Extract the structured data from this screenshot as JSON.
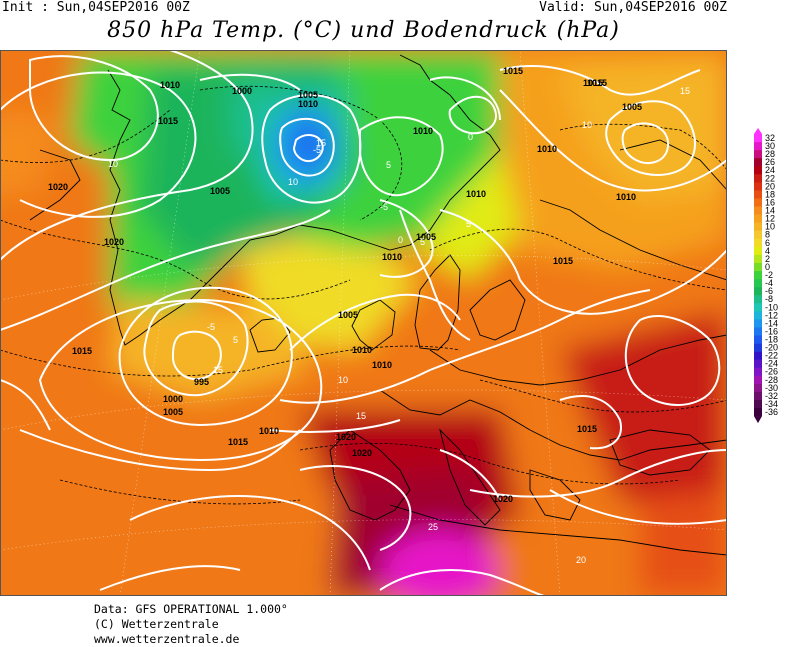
{
  "header": {
    "init": "Init : Sun,04SEP2016 00Z",
    "valid": "Valid: Sun,04SEP2016 00Z",
    "title": "850 hPa Temp. (°C) und Bodendruck (hPa)"
  },
  "footer": {
    "data_line": "Data: GFS OPERATIONAL 1.000°",
    "copyright": "(C) Wetterzentrale",
    "url": "www.wetterzentrale.de"
  },
  "colorbar": {
    "labels": [
      "32",
      "30",
      "28",
      "26",
      "24",
      "22",
      "20",
      "18",
      "16",
      "14",
      "12",
      "10",
      "8",
      "6",
      "4",
      "2",
      "0",
      "-2",
      "-4",
      "-6",
      "-8",
      "-10",
      "-12",
      "-14",
      "-16",
      "-18",
      "-20",
      "-22",
      "-24",
      "-26",
      "-28",
      "-30",
      "-32",
      "-34",
      "-36"
    ],
    "colors": [
      "#ff33ff",
      "#e619c8",
      "#c80f7d",
      "#a0002d",
      "#b40014",
      "#c81e14",
      "#dc3214",
      "#e65014",
      "#f06e14",
      "#f58c1e",
      "#f5a01e",
      "#f5b428",
      "#f5c832",
      "#f0dc28",
      "#e1eb14",
      "#b4e61e",
      "#78dc28",
      "#3cd23c",
      "#28c850",
      "#1eb45a",
      "#1ebe8c",
      "#1ec8b4",
      "#1eb4dc",
      "#1e96f0",
      "#1e78f0",
      "#1e5af0",
      "#1e3cdc",
      "#3214c8",
      "#5a14c8",
      "#8214c8",
      "#a014b4",
      "#8c148c",
      "#6e0f6e",
      "#500a50",
      "#3c003c"
    ]
  },
  "isobar_labels": [
    {
      "text": "1010"
    },
    {
      "text": "1000"
    },
    {
      "text": "1005"
    },
    {
      "text": "1010"
    },
    {
      "text": "1015"
    },
    {
      "text": "1020"
    },
    {
      "text": "1005"
    },
    {
      "text": "1020"
    },
    {
      "text": "1010"
    },
    {
      "text": "1015"
    },
    {
      "text": "1010"
    },
    {
      "text": "1010"
    },
    {
      "text": "1005"
    },
    {
      "text": "1010"
    },
    {
      "text": "1015"
    },
    {
      "text": "1005"
    },
    {
      "text": "1010"
    },
    {
      "text": "1015"
    },
    {
      "text": "995"
    },
    {
      "text": "1000"
    },
    {
      "text": "1005"
    },
    {
      "text": "1015"
    },
    {
      "text": "1010"
    },
    {
      "text": "1020"
    },
    {
      "text": "1020"
    },
    {
      "text": "1020"
    },
    {
      "text": "1015"
    },
    {
      "text": "1010"
    },
    {
      "text": "1005"
    },
    {
      "text": "1010"
    },
    {
      "text": "1015"
    },
    {
      "text": "1020"
    },
    {
      "text": "1015"
    }
  ],
  "temp_labels": [
    {
      "text": "10"
    },
    {
      "text": "-5"
    },
    {
      "text": "5"
    },
    {
      "text": "-5"
    },
    {
      "text": "0"
    },
    {
      "text": "5"
    },
    {
      "text": "10"
    },
    {
      "text": "10"
    },
    {
      "text": "15"
    },
    {
      "text": "15"
    },
    {
      "text": "-5"
    },
    {
      "text": "5"
    },
    {
      "text": "15"
    },
    {
      "text": "25"
    },
    {
      "text": "20"
    },
    {
      "text": "15"
    },
    {
      "text": "10"
    },
    {
      "text": "0"
    },
    {
      "text": "5"
    }
  ]
}
